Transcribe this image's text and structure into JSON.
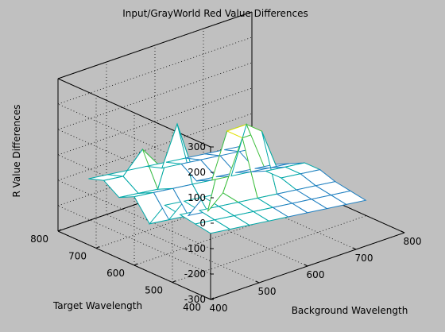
{
  "colors": {
    "figure_background": "#c0c0c0",
    "box_lines": "#000000",
    "grid_lines": "#000000",
    "mesh_colormap": [
      "#6a3a6a",
      "#3d3fa2",
      "#1f7fc0",
      "#00a8a8",
      "#3fbf3f",
      "#9fcf3f",
      "#e0e000",
      "#ffffff"
    ]
  },
  "chart_data": {
    "type": "surface",
    "title": "Input/GrayWorld Red Value Differences",
    "xlabel": "Background Wavelength",
    "ylabel": "Target Wavelength",
    "zlabel": "R Value Differences",
    "xlim": [
      400,
      800
    ],
    "ylim": [
      400,
      800
    ],
    "zlim": [
      -300,
      300
    ],
    "x_ticks": [
      "400",
      "500",
      "600",
      "700",
      "800"
    ],
    "y_ticks": [
      "400",
      "500",
      "600",
      "700",
      "800"
    ],
    "z_ticks": [
      "-300",
      "-200",
      "-100",
      "0",
      "100",
      "200",
      "300"
    ],
    "grid": true,
    "x": [
      400,
      440,
      480,
      520,
      560,
      600,
      640,
      680,
      720
    ],
    "y": [
      400,
      440,
      480,
      520,
      560,
      600,
      640,
      680,
      720
    ],
    "z": [
      [
        -40,
        -50,
        -60,
        -70,
        -80,
        -90,
        -100,
        -110,
        -120
      ],
      [
        -30,
        -40,
        -50,
        -60,
        -70,
        -80,
        -90,
        -100,
        -110
      ],
      [
        -20,
        -30,
        -40,
        -50,
        -60,
        -70,
        -80,
        -90,
        -100
      ],
      [
        -10,
        -20,
        -30,
        -40,
        150,
        150,
        -60,
        -70,
        -80
      ],
      [
        -110,
        -120,
        -130,
        -140,
        150,
        150,
        -60,
        -70,
        -80
      ],
      [
        -30,
        -40,
        -50,
        -60,
        -70,
        -80,
        -90,
        -100,
        -110
      ],
      [
        -60,
        -70,
        -80,
        150,
        -100,
        -110,
        -120,
        -130,
        -140
      ],
      [
        -20,
        -30,
        50,
        -50,
        -60,
        -70,
        -80,
        -90,
        -100
      ],
      [
        -40,
        -50,
        -60,
        -70,
        -80,
        -90,
        -100,
        -110,
        -120
      ]
    ]
  }
}
